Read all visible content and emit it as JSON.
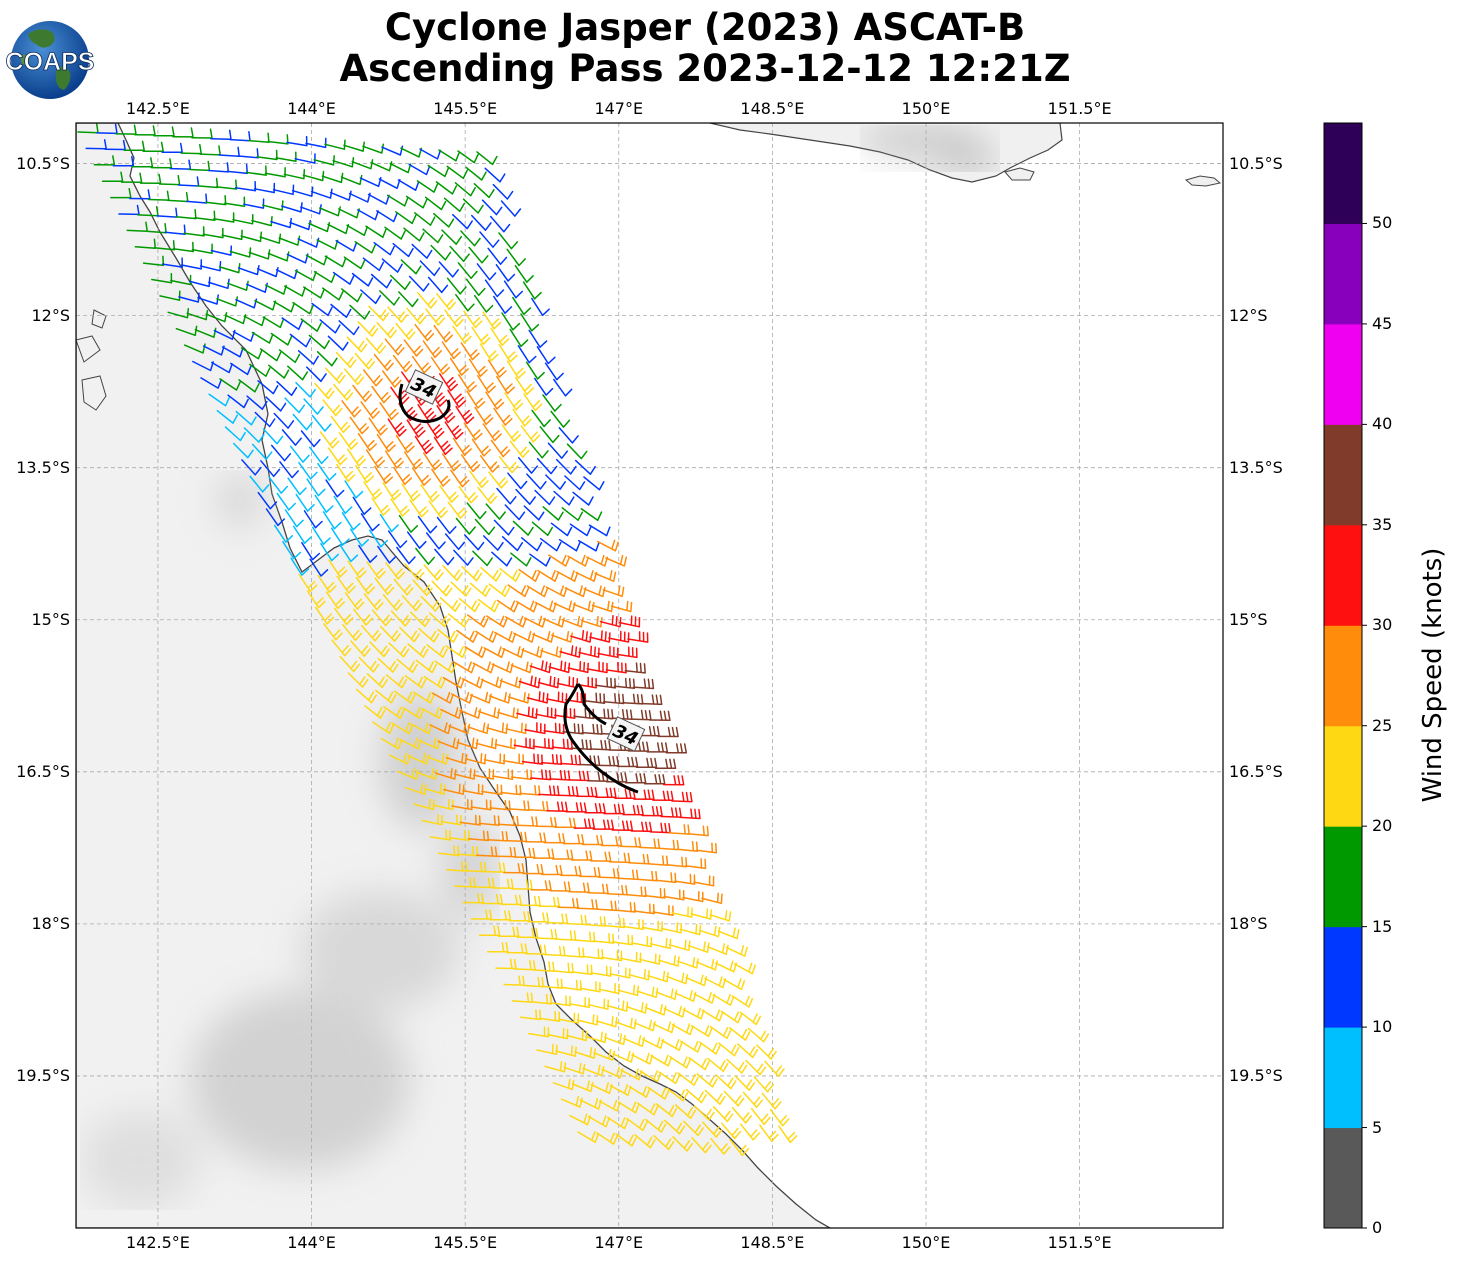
{
  "title": {
    "line1": "Cyclone Jasper (2023) ASCAT-B",
    "line2": "Ascending Pass 2023-12-12 12:21Z"
  },
  "logo": {
    "text": "COAPS",
    "icon": "globe-logo-icon"
  },
  "map": {
    "lon_range": [
      141.7,
      152.9
    ],
    "lat_range": [
      -21.0,
      -10.1
    ],
    "lon_ticks": [
      142.5,
      144,
      145.5,
      147,
      148.5,
      150,
      151.5
    ],
    "lon_tick_labels": [
      "142.5°E",
      "144°E",
      "145.5°E",
      "147°E",
      "148.5°E",
      "150°E",
      "151.5°E"
    ],
    "lat_ticks": [
      -10.5,
      -12,
      -13.5,
      -15,
      -16.5,
      -18,
      -19.5
    ],
    "lat_tick_labels": [
      "10.5°S",
      "12°S",
      "13.5°S",
      "15°S",
      "16.5°S",
      "18°S",
      "19.5°S"
    ],
    "grid": true,
    "contour_labels": [
      "34",
      "34"
    ]
  },
  "colorbar": {
    "label": "Wind Speed (knots)",
    "tick_labels": [
      "0",
      "5",
      "10",
      "15",
      "20",
      "25",
      "30",
      "35",
      "40",
      "45",
      "50"
    ],
    "colors": [
      "#595959",
      "#00bfff",
      "#0038ff",
      "#009900",
      "#ffd814",
      "#ff8c0a",
      "#ff1010",
      "#803b2a",
      "#f000f0",
      "#8800bb",
      "#2e0057"
    ]
  }
}
